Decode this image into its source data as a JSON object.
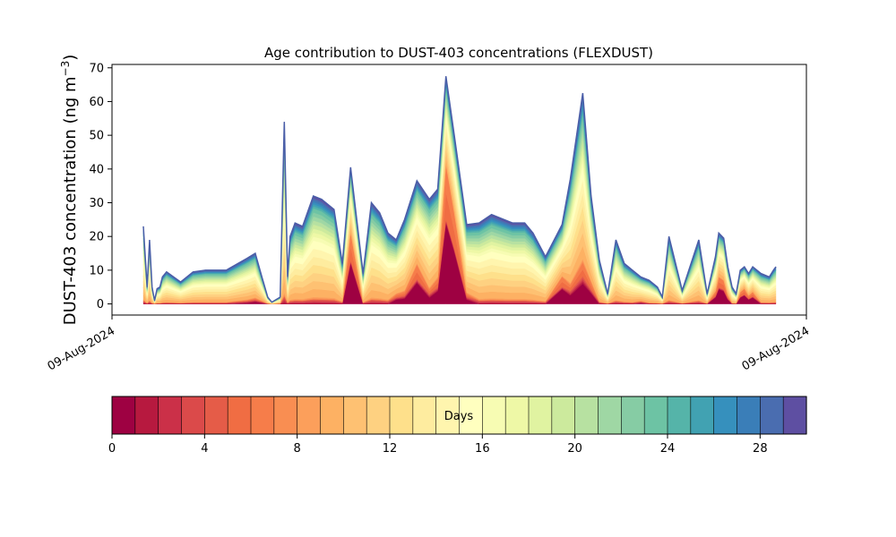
{
  "chart_data": {
    "type": "area",
    "title": "Age contribution to DUST-403 concentrations (FLEXDUST)",
    "ylabel_main": "DUST-403 concentration (ng m",
    "ylabel_unit": "−3",
    "ylabel_close": ")",
    "xlabel": "",
    "ylim": [
      -3.3,
      71
    ],
    "yticks": [
      0,
      10,
      20,
      30,
      40,
      50,
      60,
      70
    ],
    "xtick_labels": [
      "09-Aug-2024",
      "09-Aug-2024"
    ],
    "grid": false,
    "x": [
      0,
      0.45,
      0.75,
      1.05,
      1.35,
      1.65,
      2.0,
      2.3,
      2.8,
      4.5,
      6.0,
      7.5,
      10.0,
      12.5,
      13.5,
      14.3,
      15.0,
      15.5,
      16.5,
      17.0,
      17.4,
      17.7,
      18.3,
      19.2,
      20.5,
      21.5,
      23.0,
      24.0,
      25.0,
      26.5,
      27.5,
      28.5,
      29.5,
      30.5,
      31.5,
      33.0,
      34.5,
      35.5,
      36.5,
      37.5,
      39.0,
      40.5,
      42.0,
      44.5,
      46.0,
      47.0,
      48.5,
      50.5,
      51.5,
      53.0,
      54.0,
      55.0,
      56.0,
      57.0,
      58.0,
      59.0,
      60.0,
      61.0,
      62.0,
      62.6,
      63.4,
      65.0,
      67.0,
      68.0,
      69.0,
      69.4,
      70.0,
      70.5,
      71.0,
      71.5,
      72.0,
      72.5,
      73.0,
      73.5,
      74.5,
      75.5,
      76.0,
      76.3
    ],
    "total": [
      23,
      5,
      19,
      5,
      1,
      4.5,
      5,
      8,
      9.5,
      6.5,
      9.5,
      10,
      10,
      13.5,
      15,
      8,
      2,
      0.5,
      2,
      54,
      8,
      20,
      24,
      23,
      32,
      31,
      28,
      12,
      40.5,
      9,
      30,
      27,
      21,
      19,
      25,
      36.5,
      31,
      34,
      67.5,
      50,
      23.5,
      24,
      26.5,
      24,
      24,
      21,
      14,
      23.5,
      37,
      62.5,
      32,
      13,
      3,
      19,
      12,
      10,
      8,
      7,
      5,
      2,
      20,
      4,
      19,
      3,
      14,
      21,
      19.5,
      11,
      5,
      3,
      10,
      11,
      9,
      11,
      9,
      8,
      10,
      11
    ],
    "young": [
      0,
      0,
      0,
      0,
      0,
      0,
      0,
      0,
      0,
      0,
      0,
      0,
      0,
      0.5,
      1,
      0.5,
      0,
      0,
      0,
      0,
      0,
      0,
      0,
      0,
      0,
      0,
      0,
      0,
      19.5,
      0,
      0,
      0,
      0,
      2,
      2.5,
      10,
      3,
      6,
      39,
      25,
      2,
      0,
      0,
      0,
      0,
      0,
      0,
      7,
      4,
      9.5,
      5,
      0,
      0,
      0,
      0,
      0,
      0.5,
      0,
      0,
      0,
      0,
      0,
      0,
      0,
      3,
      7,
      6,
      2,
      0,
      0,
      3,
      4,
      2,
      3,
      0,
      0,
      0,
      0
    ],
    "colorbar": {
      "label": "Days",
      "ticks": [
        0,
        4,
        8,
        12,
        16,
        20,
        24,
        28
      ],
      "bins": 30,
      "colors": [
        "#9e0142",
        "#b7193f",
        "#cb3048",
        "#db4a4a",
        "#e55c48",
        "#f06d43",
        "#f67d4a",
        "#f98e52",
        "#fc9f5b",
        "#fdb163",
        "#fec172",
        "#fed181",
        "#fee08b",
        "#feec9f",
        "#fff5ae",
        "#ffffbf",
        "#f7fcb3",
        "#eef8a6",
        "#e0f3a1",
        "#ccea9d",
        "#b7e1a1",
        "#9fd7a4",
        "#86cca4",
        "#6dc3a4",
        "#55b4a9",
        "#41a2b2",
        "#3690bd",
        "#3a7eb8",
        "#4a6db0",
        "#5e4fa2"
      ]
    }
  }
}
